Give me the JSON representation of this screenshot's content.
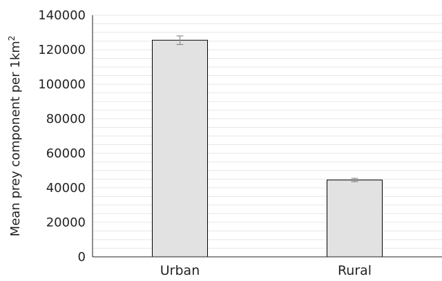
{
  "chart_data": {
    "type": "bar",
    "categories": [
      "Urban",
      "Rural"
    ],
    "values": [
      125500,
      44500
    ],
    "error": [
      2500,
      1000
    ],
    "ylabel": "Mean prey component per 1km",
    "ylabel_superscript": "2",
    "xlabel": "",
    "title": "",
    "ylim": [
      0,
      140000
    ],
    "yticks": [
      0,
      20000,
      40000,
      60000,
      80000,
      100000,
      120000,
      140000
    ],
    "grid": "horizontal minor gridlines",
    "legend": "none",
    "bar_color": "#e2e2e2",
    "bar_edge_color": "#000000",
    "error_bar_color": "#8c8c8c",
    "gridline_color": "#e7e7e7"
  }
}
